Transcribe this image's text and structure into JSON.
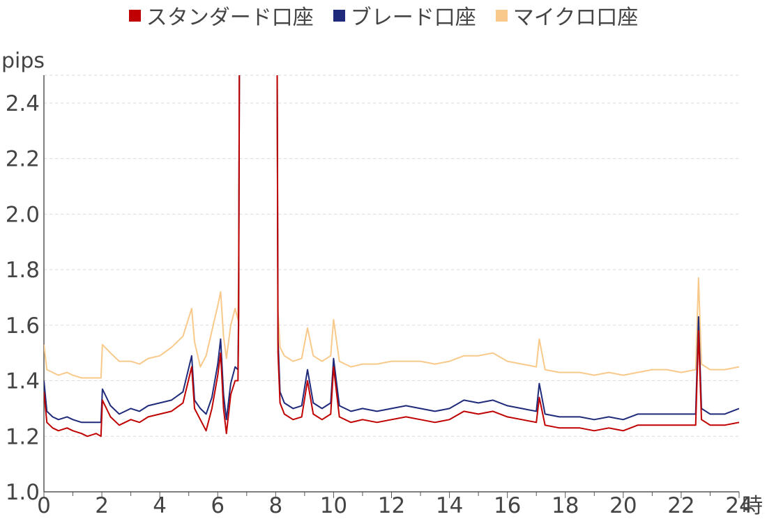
{
  "chart_data": {
    "type": "line",
    "title": "",
    "xlabel": "時",
    "ylabel": "pips",
    "xlim": [
      0,
      24
    ],
    "ylim": [
      1.0,
      2.5
    ],
    "x_ticks": [
      0,
      2,
      4,
      6,
      8,
      10,
      12,
      14,
      16,
      18,
      20,
      22,
      24
    ],
    "y_ticks": [
      1.0,
      1.2,
      1.4,
      1.6,
      1.8,
      2.0,
      2.2,
      2.4
    ],
    "y_tick_labels": [
      "1.0",
      "1.2",
      "1.4",
      "1.6",
      "1.8",
      "2.0",
      "2.2",
      "2.4"
    ],
    "grid": true,
    "legend_position": "top-center",
    "gap": [
      6.75,
      8.05
    ],
    "series": [
      {
        "name": "スタンダード口座",
        "color": "#c00000",
        "points": [
          [
            0.0,
            1.36
          ],
          [
            0.1,
            1.25
          ],
          [
            0.3,
            1.23
          ],
          [
            0.5,
            1.22
          ],
          [
            0.8,
            1.23
          ],
          [
            1.0,
            1.22
          ],
          [
            1.3,
            1.21
          ],
          [
            1.5,
            1.2
          ],
          [
            1.8,
            1.21
          ],
          [
            1.97,
            1.2
          ],
          [
            2.02,
            1.33
          ],
          [
            2.3,
            1.27
          ],
          [
            2.6,
            1.24
          ],
          [
            3.0,
            1.26
          ],
          [
            3.3,
            1.25
          ],
          [
            3.6,
            1.27
          ],
          [
            4.0,
            1.28
          ],
          [
            4.4,
            1.29
          ],
          [
            4.8,
            1.32
          ],
          [
            5.1,
            1.45
          ],
          [
            5.2,
            1.3
          ],
          [
            5.4,
            1.26
          ],
          [
            5.6,
            1.22
          ],
          [
            5.8,
            1.3
          ],
          [
            6.0,
            1.42
          ],
          [
            6.1,
            1.5
          ],
          [
            6.2,
            1.3
          ],
          [
            6.3,
            1.21
          ],
          [
            6.45,
            1.35
          ],
          [
            6.6,
            1.4
          ],
          [
            6.7,
            1.4
          ],
          [
            6.72,
            1.6
          ],
          [
            6.75,
            2.6
          ],
          [
            8.05,
            2.6
          ],
          [
            8.08,
            1.5
          ],
          [
            8.15,
            1.32
          ],
          [
            8.3,
            1.28
          ],
          [
            8.6,
            1.26
          ],
          [
            8.9,
            1.27
          ],
          [
            9.1,
            1.4
          ],
          [
            9.3,
            1.28
          ],
          [
            9.6,
            1.26
          ],
          [
            9.9,
            1.28
          ],
          [
            10.0,
            1.45
          ],
          [
            10.2,
            1.27
          ],
          [
            10.6,
            1.25
          ],
          [
            11.0,
            1.26
          ],
          [
            11.5,
            1.25
          ],
          [
            12.0,
            1.26
          ],
          [
            12.5,
            1.27
          ],
          [
            13.0,
            1.26
          ],
          [
            13.5,
            1.25
          ],
          [
            14.0,
            1.26
          ],
          [
            14.5,
            1.29
          ],
          [
            15.0,
            1.28
          ],
          [
            15.5,
            1.29
          ],
          [
            16.0,
            1.27
          ],
          [
            16.5,
            1.26
          ],
          [
            17.0,
            1.25
          ],
          [
            17.1,
            1.34
          ],
          [
            17.3,
            1.24
          ],
          [
            17.8,
            1.23
          ],
          [
            18.5,
            1.23
          ],
          [
            19.0,
            1.22
          ],
          [
            19.5,
            1.23
          ],
          [
            20.0,
            1.22
          ],
          [
            20.5,
            1.24
          ],
          [
            21.0,
            1.24
          ],
          [
            21.5,
            1.24
          ],
          [
            22.0,
            1.24
          ],
          [
            22.5,
            1.24
          ],
          [
            22.6,
            1.58
          ],
          [
            22.7,
            1.26
          ],
          [
            23.0,
            1.24
          ],
          [
            23.5,
            1.24
          ],
          [
            24.0,
            1.25
          ]
        ]
      },
      {
        "name": "ブレード口座",
        "color": "#1f2a7a",
        "points": [
          [
            0.0,
            1.4
          ],
          [
            0.1,
            1.29
          ],
          [
            0.3,
            1.27
          ],
          [
            0.5,
            1.26
          ],
          [
            0.8,
            1.27
          ],
          [
            1.0,
            1.26
          ],
          [
            1.3,
            1.25
          ],
          [
            1.5,
            1.25
          ],
          [
            1.8,
            1.25
          ],
          [
            1.97,
            1.25
          ],
          [
            2.02,
            1.37
          ],
          [
            2.3,
            1.31
          ],
          [
            2.6,
            1.28
          ],
          [
            3.0,
            1.3
          ],
          [
            3.3,
            1.29
          ],
          [
            3.6,
            1.31
          ],
          [
            4.0,
            1.32
          ],
          [
            4.4,
            1.33
          ],
          [
            4.8,
            1.36
          ],
          [
            5.1,
            1.49
          ],
          [
            5.2,
            1.33
          ],
          [
            5.4,
            1.3
          ],
          [
            5.6,
            1.28
          ],
          [
            5.8,
            1.34
          ],
          [
            6.0,
            1.46
          ],
          [
            6.1,
            1.55
          ],
          [
            6.2,
            1.35
          ],
          [
            6.3,
            1.26
          ],
          [
            6.45,
            1.39
          ],
          [
            6.6,
            1.45
          ],
          [
            6.7,
            1.44
          ],
          [
            6.72,
            1.65
          ],
          [
            6.75,
            2.6
          ],
          [
            8.05,
            2.6
          ],
          [
            8.08,
            1.55
          ],
          [
            8.15,
            1.36
          ],
          [
            8.3,
            1.32
          ],
          [
            8.6,
            1.3
          ],
          [
            8.9,
            1.31
          ],
          [
            9.1,
            1.44
          ],
          [
            9.3,
            1.32
          ],
          [
            9.6,
            1.3
          ],
          [
            9.9,
            1.32
          ],
          [
            10.0,
            1.48
          ],
          [
            10.2,
            1.31
          ],
          [
            10.6,
            1.29
          ],
          [
            11.0,
            1.3
          ],
          [
            11.5,
            1.29
          ],
          [
            12.0,
            1.3
          ],
          [
            12.5,
            1.31
          ],
          [
            13.0,
            1.3
          ],
          [
            13.5,
            1.29
          ],
          [
            14.0,
            1.3
          ],
          [
            14.5,
            1.33
          ],
          [
            15.0,
            1.32
          ],
          [
            15.5,
            1.33
          ],
          [
            16.0,
            1.31
          ],
          [
            16.5,
            1.3
          ],
          [
            17.0,
            1.29
          ],
          [
            17.1,
            1.39
          ],
          [
            17.3,
            1.28
          ],
          [
            17.8,
            1.27
          ],
          [
            18.5,
            1.27
          ],
          [
            19.0,
            1.26
          ],
          [
            19.5,
            1.27
          ],
          [
            20.0,
            1.26
          ],
          [
            20.5,
            1.28
          ],
          [
            21.0,
            1.28
          ],
          [
            21.5,
            1.28
          ],
          [
            22.0,
            1.28
          ],
          [
            22.5,
            1.28
          ],
          [
            22.6,
            1.63
          ],
          [
            22.7,
            1.3
          ],
          [
            23.0,
            1.28
          ],
          [
            23.5,
            1.28
          ],
          [
            24.0,
            1.3
          ]
        ]
      },
      {
        "name": "マイクロ口座",
        "color": "#f8c98a",
        "points": [
          [
            0.0,
            1.53
          ],
          [
            0.1,
            1.44
          ],
          [
            0.3,
            1.43
          ],
          [
            0.5,
            1.42
          ],
          [
            0.8,
            1.43
          ],
          [
            1.0,
            1.42
          ],
          [
            1.3,
            1.41
          ],
          [
            1.5,
            1.41
          ],
          [
            1.8,
            1.41
          ],
          [
            1.97,
            1.41
          ],
          [
            2.02,
            1.53
          ],
          [
            2.3,
            1.5
          ],
          [
            2.6,
            1.47
          ],
          [
            3.0,
            1.47
          ],
          [
            3.3,
            1.46
          ],
          [
            3.6,
            1.48
          ],
          [
            4.0,
            1.49
          ],
          [
            4.4,
            1.52
          ],
          [
            4.8,
            1.56
          ],
          [
            5.1,
            1.66
          ],
          [
            5.2,
            1.54
          ],
          [
            5.4,
            1.45
          ],
          [
            5.6,
            1.49
          ],
          [
            5.8,
            1.58
          ],
          [
            6.0,
            1.67
          ],
          [
            6.1,
            1.72
          ],
          [
            6.2,
            1.56
          ],
          [
            6.3,
            1.48
          ],
          [
            6.45,
            1.6
          ],
          [
            6.6,
            1.66
          ],
          [
            6.7,
            1.62
          ],
          [
            6.72,
            1.8
          ],
          [
            6.75,
            2.6
          ],
          [
            8.05,
            2.6
          ],
          [
            8.08,
            1.65
          ],
          [
            8.15,
            1.52
          ],
          [
            8.3,
            1.49
          ],
          [
            8.6,
            1.47
          ],
          [
            8.9,
            1.48
          ],
          [
            9.1,
            1.59
          ],
          [
            9.3,
            1.49
          ],
          [
            9.6,
            1.47
          ],
          [
            9.9,
            1.49
          ],
          [
            10.0,
            1.62
          ],
          [
            10.2,
            1.47
          ],
          [
            10.6,
            1.45
          ],
          [
            11.0,
            1.46
          ],
          [
            11.5,
            1.46
          ],
          [
            12.0,
            1.47
          ],
          [
            12.5,
            1.47
          ],
          [
            13.0,
            1.47
          ],
          [
            13.5,
            1.46
          ],
          [
            14.0,
            1.47
          ],
          [
            14.5,
            1.49
          ],
          [
            15.0,
            1.49
          ],
          [
            15.5,
            1.5
          ],
          [
            16.0,
            1.47
          ],
          [
            16.5,
            1.46
          ],
          [
            17.0,
            1.45
          ],
          [
            17.1,
            1.55
          ],
          [
            17.3,
            1.44
          ],
          [
            17.8,
            1.43
          ],
          [
            18.5,
            1.43
          ],
          [
            19.0,
            1.42
          ],
          [
            19.5,
            1.43
          ],
          [
            20.0,
            1.42
          ],
          [
            20.5,
            1.43
          ],
          [
            21.0,
            1.44
          ],
          [
            21.5,
            1.44
          ],
          [
            22.0,
            1.43
          ],
          [
            22.5,
            1.44
          ],
          [
            22.6,
            1.77
          ],
          [
            22.7,
            1.46
          ],
          [
            23.0,
            1.44
          ],
          [
            23.5,
            1.44
          ],
          [
            24.0,
            1.45
          ]
        ]
      }
    ]
  }
}
